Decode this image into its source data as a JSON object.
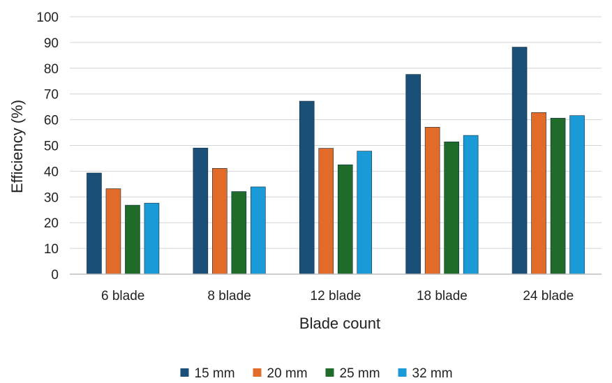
{
  "chart_data": {
    "type": "bar",
    "title": "",
    "xlabel": "Blade count",
    "ylabel": "Efficiency (%)",
    "ylim": [
      0,
      100
    ],
    "yticks": [
      0,
      10,
      20,
      30,
      40,
      50,
      60,
      70,
      80,
      90,
      100
    ],
    "grid": true,
    "legend_position": "bottom",
    "categories": [
      "6 blade",
      "8 blade",
      "12 blade",
      "18 blade",
      "24 blade"
    ],
    "series": [
      {
        "name": "15 mm",
        "color": "#1a4f78",
        "values": [
          39.3,
          49.0,
          67.2,
          77.6,
          88.2
        ]
      },
      {
        "name": "20 mm",
        "color": "#e26b2a",
        "values": [
          33.2,
          41.1,
          48.9,
          57.1,
          62.8
        ]
      },
      {
        "name": "25 mm",
        "color": "#1f6b2a",
        "values": [
          26.8,
          32.1,
          42.5,
          51.4,
          60.6
        ]
      },
      {
        "name": "32 mm",
        "color": "#1a9ad6",
        "values": [
          27.6,
          33.9,
          47.8,
          53.9,
          61.6
        ]
      }
    ]
  }
}
